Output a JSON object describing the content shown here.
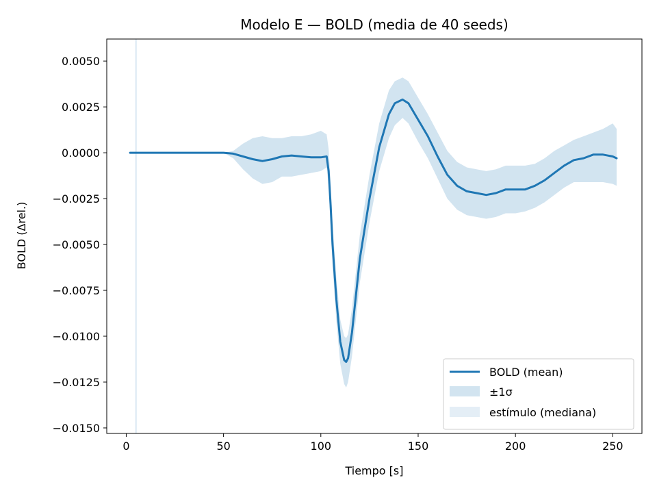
{
  "chart_data": {
    "type": "line",
    "title": "Modelo E — BOLD (media de 40 seeds)",
    "xlabel": "Tiempo [s]",
    "ylabel": "BOLD (Δrel.)",
    "xlim": [
      -10,
      265
    ],
    "ylim": [
      -0.0153,
      0.0062
    ],
    "xticks": [
      0,
      50,
      100,
      150,
      200,
      250
    ],
    "xtick_labels": [
      "0",
      "50",
      "100",
      "150",
      "200",
      "250"
    ],
    "yticks": [
      0.005,
      0.0025,
      0.0,
      -0.0025,
      -0.005,
      -0.0075,
      -0.01,
      -0.0125,
      -0.015
    ],
    "ytick_labels": [
      "0.0050",
      "0.0025",
      "0.0000",
      "−0.0025",
      "−0.0050",
      "−0.0075",
      "−0.0100",
      "−0.0125",
      "−0.0150"
    ],
    "grid": false,
    "legend_position": "lower-right",
    "stimulus_interval": [
      4.5,
      5.5
    ],
    "series": [
      {
        "name": "BOLD (mean)",
        "color": "#1f77b4",
        "x": [
          2,
          10,
          20,
          30,
          40,
          50,
          55,
          60,
          65,
          70,
          75,
          80,
          85,
          90,
          95,
          100,
          103,
          104,
          105,
          106,
          108,
          110,
          112,
          113,
          114,
          116,
          118,
          120,
          125,
          130,
          135,
          138,
          142,
          145,
          150,
          155,
          160,
          165,
          170,
          175,
          180,
          185,
          190,
          195,
          200,
          205,
          210,
          215,
          220,
          225,
          230,
          235,
          240,
          245,
          250,
          252
        ],
        "y": [
          0.0,
          0.0,
          0.0,
          0.0,
          0.0,
          0.0,
          -5e-05,
          -0.0002,
          -0.00035,
          -0.00045,
          -0.00035,
          -0.0002,
          -0.00015,
          -0.0002,
          -0.00025,
          -0.00025,
          -0.0002,
          -0.001,
          -0.0028,
          -0.005,
          -0.008,
          -0.0103,
          -0.0113,
          -0.0114,
          -0.0112,
          -0.0098,
          -0.0078,
          -0.0058,
          -0.0025,
          0.0003,
          0.0021,
          0.0027,
          0.0029,
          0.0027,
          0.0018,
          0.0009,
          -0.0002,
          -0.0012,
          -0.0018,
          -0.0021,
          -0.0022,
          -0.0023,
          -0.0022,
          -0.002,
          -0.002,
          -0.002,
          -0.0018,
          -0.0015,
          -0.0011,
          -0.0007,
          -0.0004,
          -0.0003,
          -0.0001,
          -0.0001,
          -0.0002,
          -0.0003
        ]
      }
    ],
    "band": {
      "name": "±1σ",
      "color": "#1f77b4",
      "x": [
        2,
        50,
        55,
        60,
        65,
        70,
        75,
        80,
        85,
        90,
        95,
        100,
        103,
        104,
        105,
        106,
        108,
        110,
        112,
        113,
        114,
        116,
        118,
        120,
        125,
        130,
        135,
        138,
        142,
        145,
        150,
        155,
        160,
        165,
        170,
        175,
        180,
        185,
        190,
        195,
        200,
        205,
        210,
        215,
        220,
        225,
        230,
        235,
        240,
        245,
        250,
        252
      ],
      "upper": [
        0.0,
        0.0,
        0.0001,
        0.0005,
        0.0008,
        0.0009,
        0.0008,
        0.0008,
        0.0009,
        0.0009,
        0.001,
        0.0012,
        0.001,
        0.0002,
        -0.0016,
        -0.0038,
        -0.0068,
        -0.0091,
        -0.01,
        -0.0101,
        -0.0099,
        -0.0085,
        -0.0065,
        -0.0045,
        -0.0012,
        0.0016,
        0.0034,
        0.0039,
        0.0041,
        0.0039,
        0.003,
        0.0021,
        0.0011,
        0.0001,
        -0.0005,
        -0.0008,
        -0.0009,
        -0.001,
        -0.0009,
        -0.0007,
        -0.0007,
        -0.0007,
        -0.0006,
        -0.0003,
        0.0001,
        0.0004,
        0.0007,
        0.0009,
        0.0011,
        0.0013,
        0.0016,
        0.0013
      ],
      "lower": [
        0.0,
        0.0,
        -0.0003,
        -0.0009,
        -0.0014,
        -0.0017,
        -0.0016,
        -0.0013,
        -0.0013,
        -0.0012,
        -0.0011,
        -0.001,
        -0.0008,
        -0.0018,
        -0.004,
        -0.0062,
        -0.0092,
        -0.0115,
        -0.0126,
        -0.0128,
        -0.0125,
        -0.0111,
        -0.0091,
        -0.0071,
        -0.0038,
        -0.001,
        0.0008,
        0.0015,
        0.0019,
        0.0016,
        0.0006,
        -0.0003,
        -0.0014,
        -0.0025,
        -0.0031,
        -0.0034,
        -0.0035,
        -0.0036,
        -0.0035,
        -0.0033,
        -0.0033,
        -0.0032,
        -0.003,
        -0.0027,
        -0.0023,
        -0.0019,
        -0.0016,
        -0.0016,
        -0.0016,
        -0.0016,
        -0.0017,
        -0.0018
      ]
    },
    "stimulus_label": "estímulo (mediana)"
  }
}
